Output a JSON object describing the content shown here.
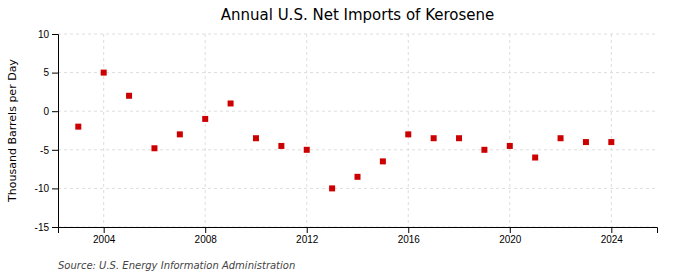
{
  "chart_data": {
    "type": "scatter",
    "title": "Annual U.S. Net Imports of Kerosene",
    "ylabel": "Thousand Barrels per Day",
    "source": "Source: U.S. Energy Information Administration",
    "x": [
      2003,
      2004,
      2005,
      2006,
      2007,
      2008,
      2009,
      2010,
      2011,
      2012,
      2013,
      2014,
      2015,
      2016,
      2017,
      2018,
      2019,
      2020,
      2021,
      2022,
      2023,
      2024
    ],
    "values": [
      -2,
      5,
      2,
      -4.8,
      -3,
      -1,
      1,
      -3.5,
      -4.5,
      -5,
      -10,
      -8.5,
      -6.5,
      -3,
      -3.5,
      -3.5,
      -5,
      -4.5,
      -6,
      -3.5,
      -4,
      -4
    ],
    "color": "#cc0000",
    "marker": "square",
    "xlim": [
      2002.2,
      2025.8
    ],
    "xticks": [
      2004,
      2008,
      2012,
      2016,
      2020,
      2024
    ],
    "ylim": [
      -15,
      10
    ],
    "yticks": [
      -15,
      -10,
      -5,
      0,
      5,
      10
    ],
    "grid": true
  }
}
